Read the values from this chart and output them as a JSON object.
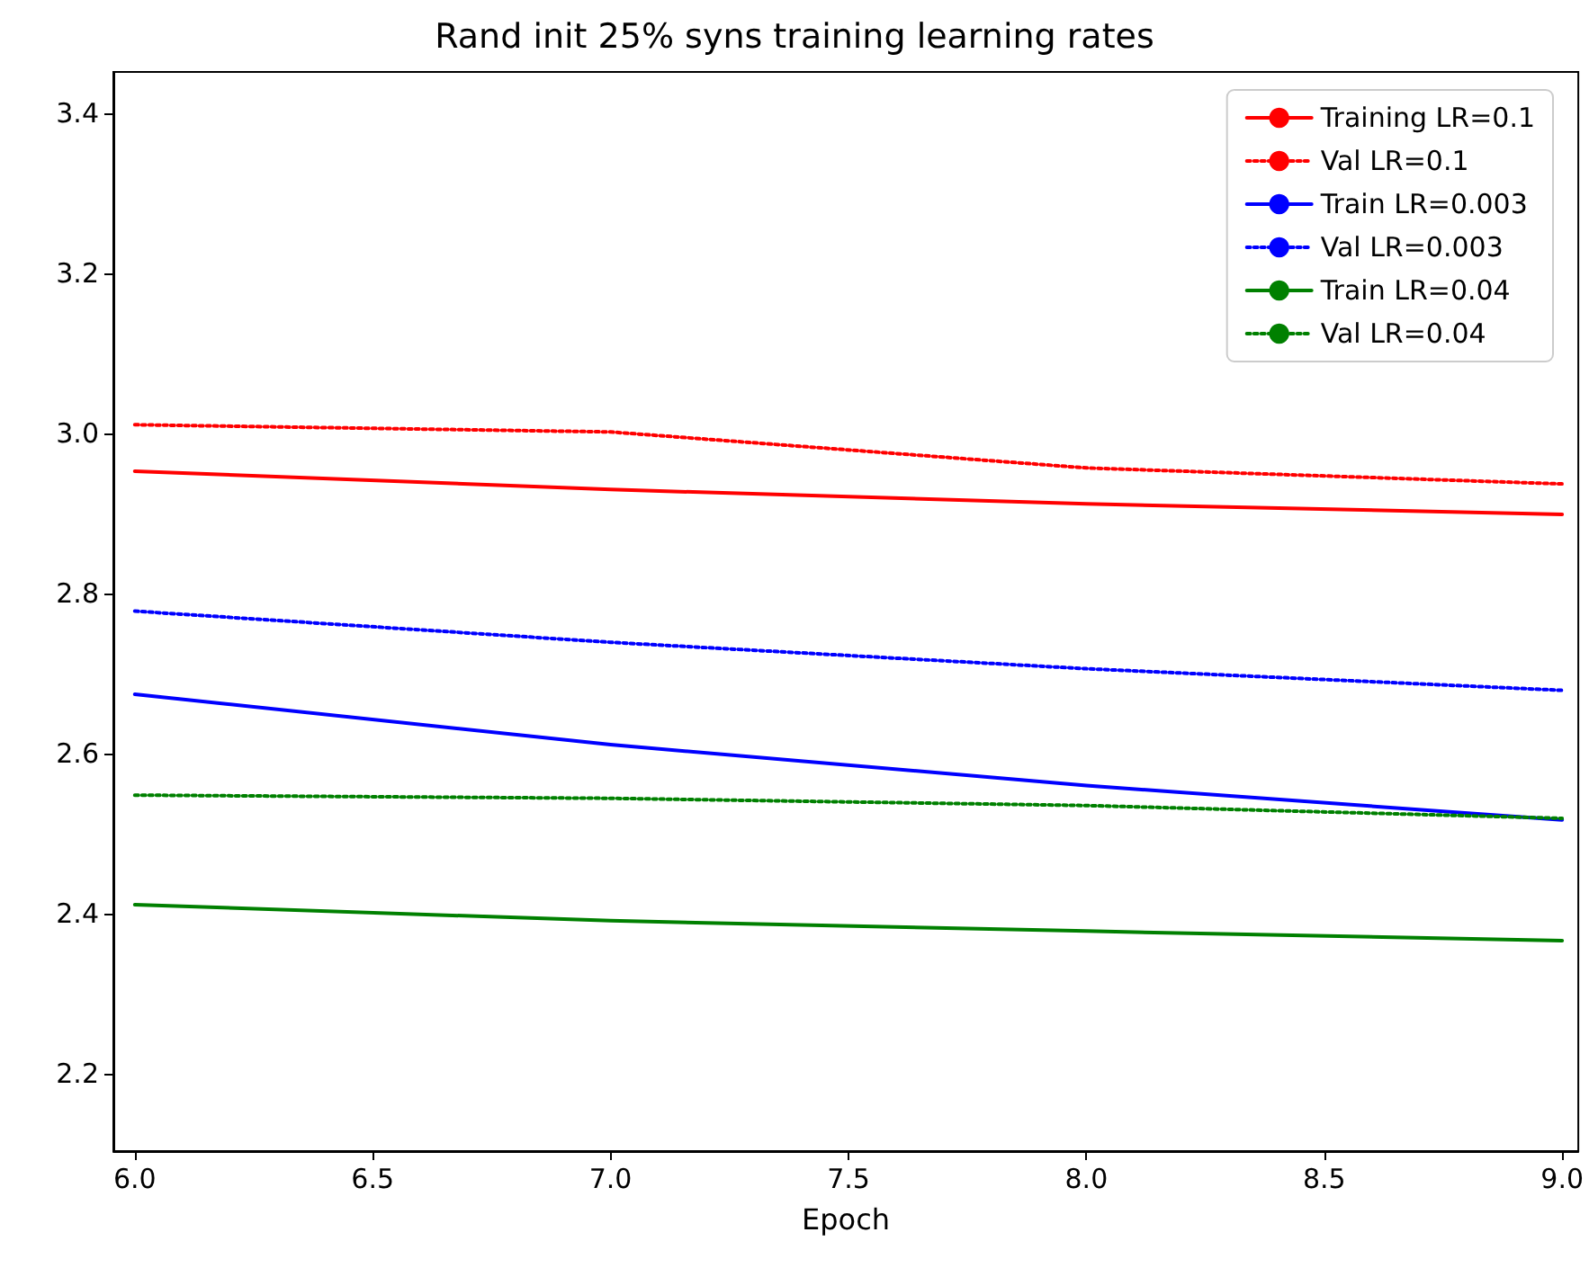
{
  "chart_data": {
    "type": "line",
    "title": "Rand init 25% syns training learning rates",
    "xlabel": "Epoch",
    "xlim": [
      5.955,
      9.034
    ],
    "xticks": [
      {
        "value": 6,
        "label": "6.0"
      },
      6.5,
      {
        "value": 7,
        "label": "7.0"
      },
      7.5,
      {
        "value": 8,
        "label": "8.0"
      },
      8.5,
      {
        "value": 9,
        "label": "9.0"
      }
    ],
    "ylim": [
      2.103,
      3.452
    ],
    "yticks": [
      2.2,
      2.4,
      2.6,
      2.8,
      {
        "value": 3,
        "label": "3.0"
      },
      3.2,
      3.4
    ],
    "grid": false,
    "legend": "top right",
    "marker": "none",
    "series": [
      {
        "name": "Training LR=0.1",
        "color": "#ff0000",
        "line_style": "solid",
        "x": [
          6,
          7,
          8,
          9
        ],
        "values": [
          2.953,
          2.93,
          2.912,
          2.899
        ]
      },
      {
        "name": "Val LR=0.1",
        "color": "#ff0000",
        "line_style": "dotted",
        "x": [
          6,
          7,
          8,
          9
        ],
        "values": [
          3.011,
          3.002,
          2.957,
          2.937
        ]
      },
      {
        "name": "Train LR=0.003",
        "color": "#0000ff",
        "line_style": "solid",
        "x": [
          6,
          7,
          8,
          9
        ],
        "values": [
          2.674,
          2.611,
          2.56,
          2.517
        ]
      },
      {
        "name": "Val LR=0.003",
        "color": "#0000ff",
        "line_style": "dotted",
        "x": [
          6,
          7,
          8,
          9
        ],
        "values": [
          2.778,
          2.739,
          2.706,
          2.679
        ]
      },
      {
        "name": "Train LR=0.04",
        "color": "#008000",
        "line_style": "solid",
        "x": [
          6,
          7,
          8,
          9
        ],
        "values": [
          2.411,
          2.391,
          2.378,
          2.366
        ]
      },
      {
        "name": "Val LR=0.04",
        "color": "#008000",
        "line_style": "dotted",
        "x": [
          6,
          7,
          8,
          9
        ],
        "values": [
          2.548,
          2.544,
          2.535,
          2.519
        ]
      }
    ]
  }
}
